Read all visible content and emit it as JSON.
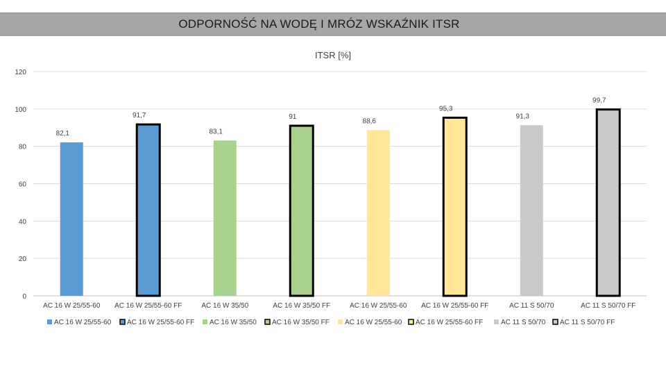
{
  "header": {
    "title": "ODPORNOŚĆ NA WODĘ I MRÓZ WSKAŹNIK ITSR"
  },
  "chart_data": {
    "type": "bar",
    "title": "ITSR [%]",
    "xlabel": "",
    "ylabel": "",
    "ylim": [
      0,
      120
    ],
    "yticks": [
      0,
      20,
      40,
      60,
      80,
      100,
      120
    ],
    "grid": true,
    "legend_position": "bottom",
    "categories": [
      "AC 16 W 25/55-60",
      "AC 16 W 25/55-60 FF",
      "AC 16 W 35/50",
      "AC 16 W 35/50 FF",
      "AC 16 W 25/55-60",
      "AC 16 W 25/55-60 FF",
      "AC 11 S 50/70",
      "AC 11  S 50/70 FF"
    ],
    "values": [
      82.1,
      91.7,
      83.1,
      91,
      88.6,
      95.3,
      91.3,
      99.7
    ],
    "data_labels": [
      "82,1",
      "91,7",
      "83,1",
      "91",
      "88,6",
      "95,3",
      "91,3",
      "99,7"
    ],
    "colors": [
      "#5b9bd5",
      "#5b9bd5",
      "#a9d18e",
      "#a9d18e",
      "#ffe699",
      "#ffe699",
      "#c9c9c9",
      "#c9c9c9"
    ],
    "outlined": [
      false,
      true,
      false,
      true,
      false,
      true,
      false,
      true
    ],
    "legend": [
      "AC 16 W 25/55-60",
      "AC 16 W 25/55-60 FF",
      "AC 16 W 35/50",
      "AC 16 W 35/50 FF",
      "AC 16 W 25/55-60",
      "AC 16 W 25/55-60 FF",
      "AC 11 S 50/70",
      "AC 11  S 50/70 FF"
    ]
  }
}
